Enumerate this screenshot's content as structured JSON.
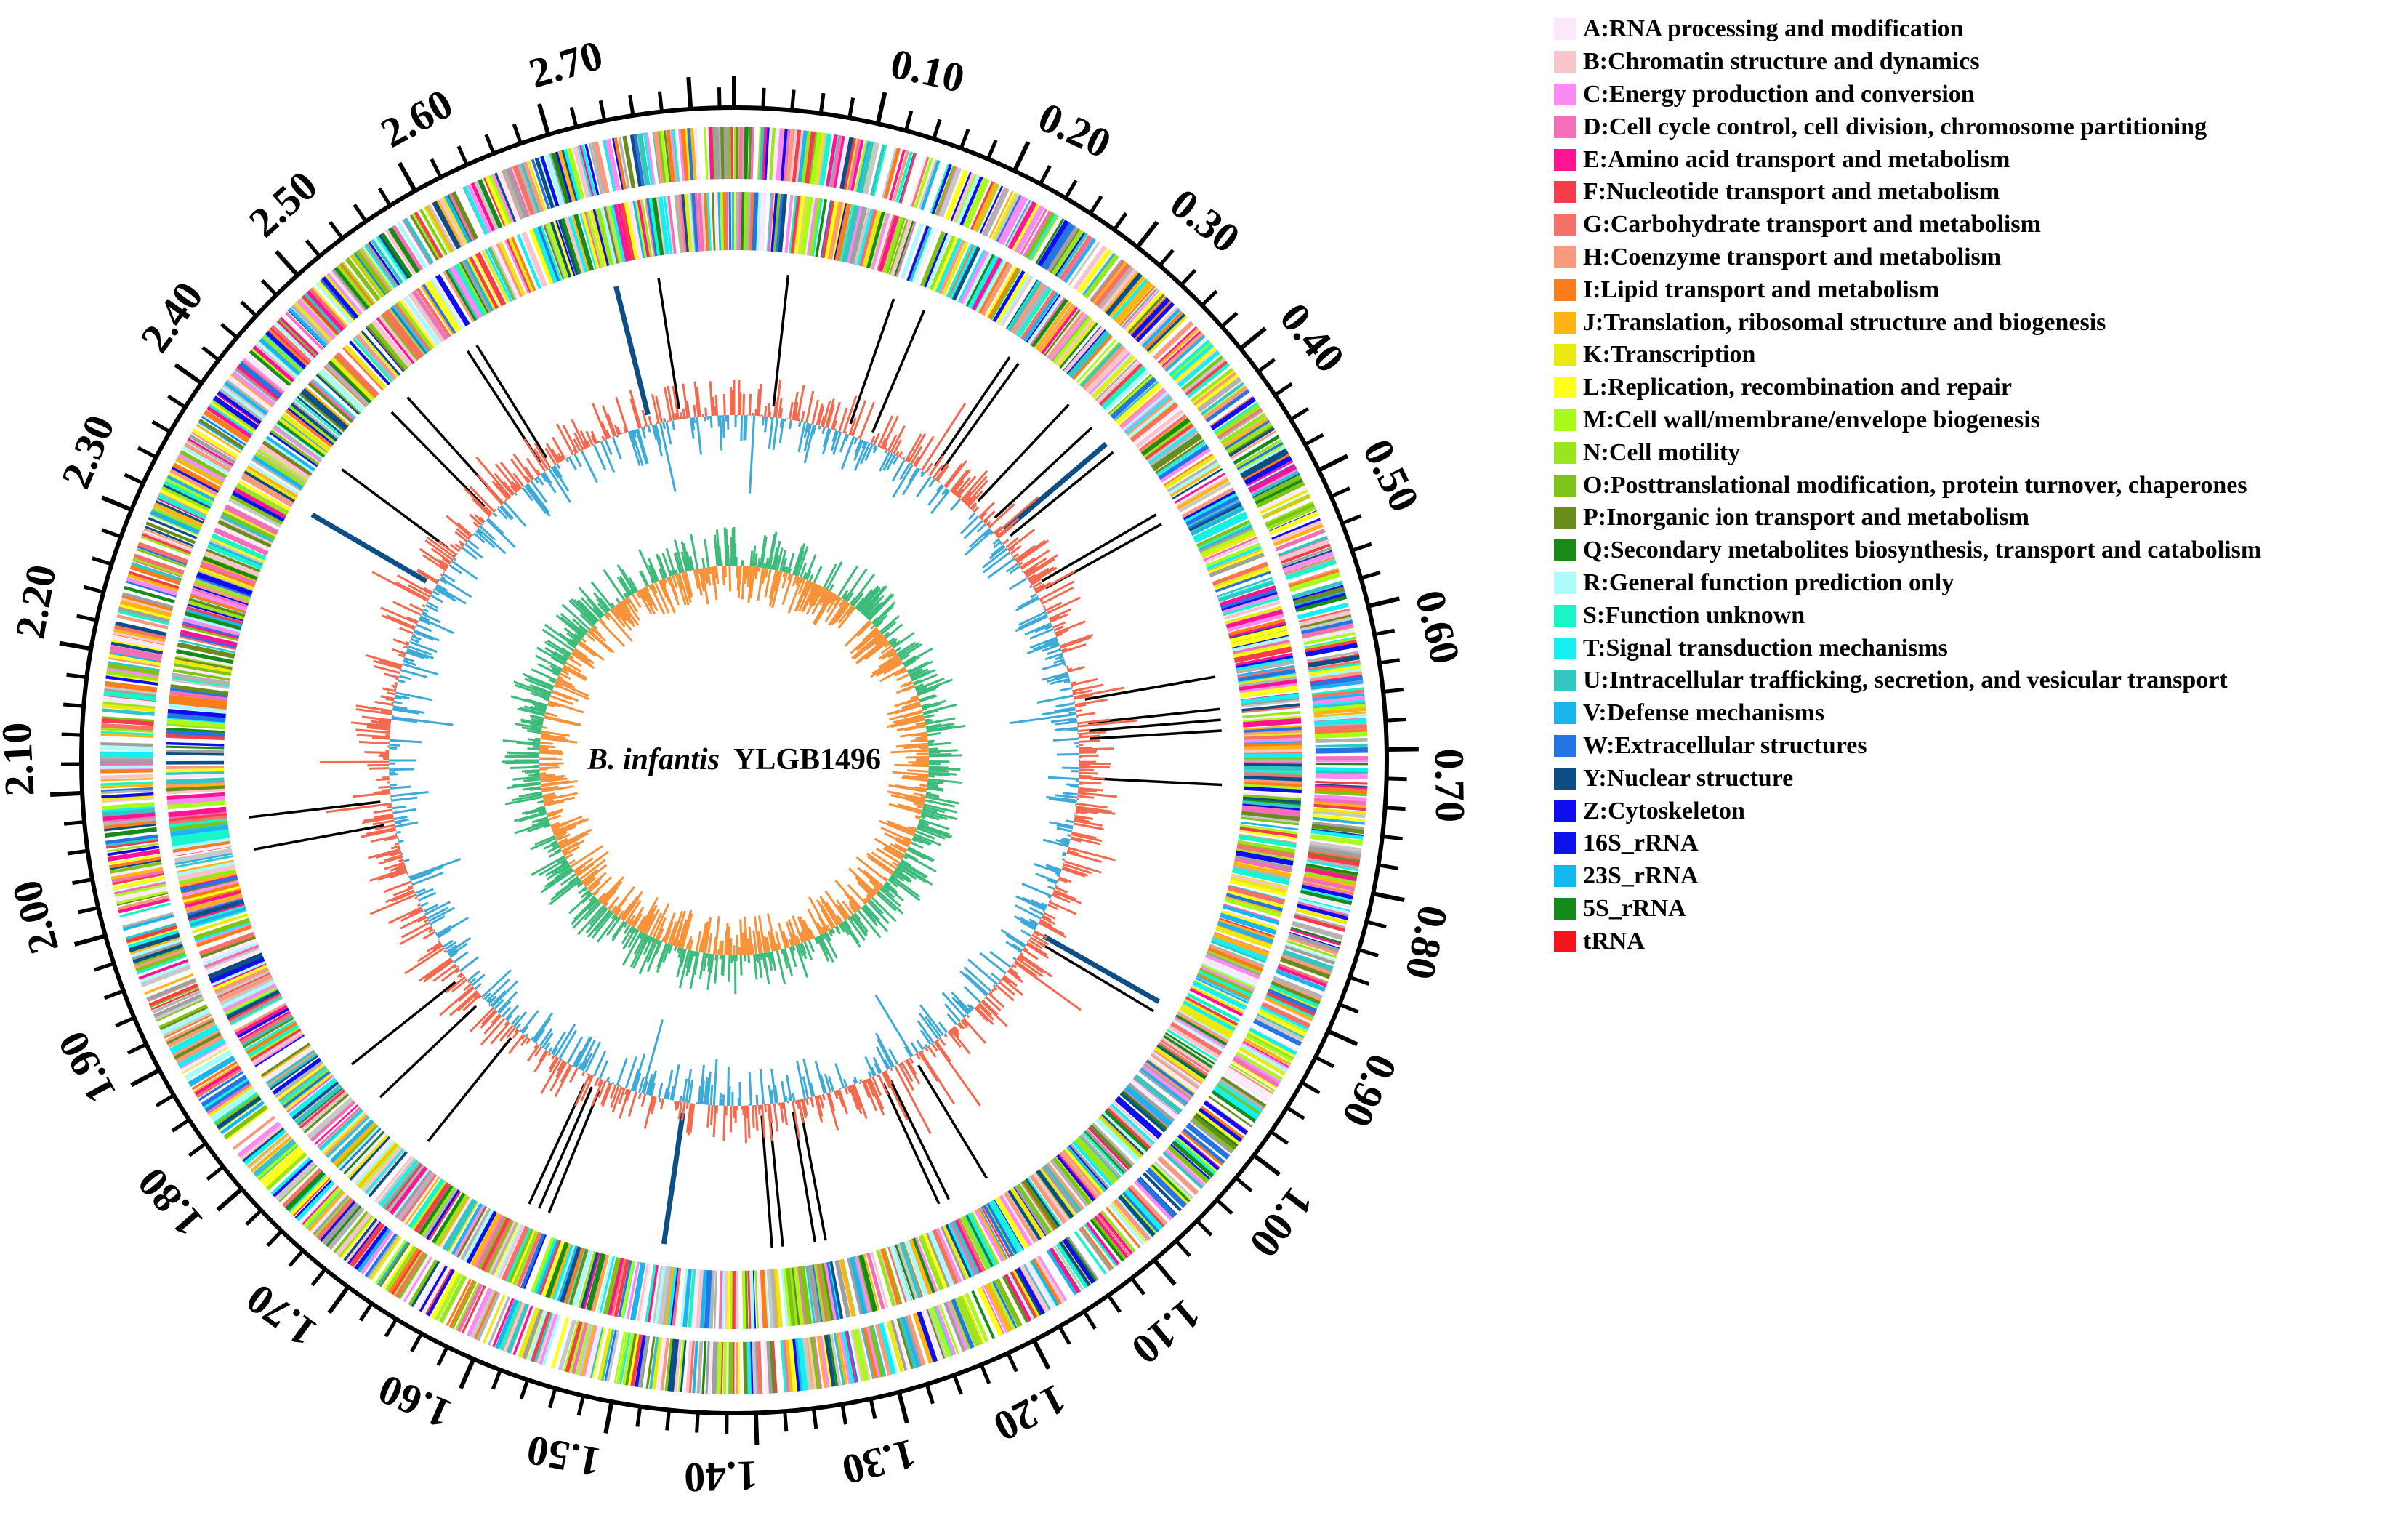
{
  "chart_data": {
    "type": "circular-genome-map",
    "title_italic": "B. infantis",
    "title_strain": "YLGB1496",
    "genome_size_mb": 2.83,
    "major_ticks": [
      "0.10",
      "0.20",
      "0.30",
      "0.40",
      "0.50",
      "0.60",
      "0.70",
      "0.80",
      "0.90",
      "1.00",
      "1.10",
      "1.20",
      "1.30",
      "1.40",
      "1.50",
      "1.60",
      "1.70",
      "1.80",
      "1.90",
      "2.00",
      "2.10",
      "2.20",
      "2.30",
      "2.40",
      "2.50",
      "2.60",
      "2.70"
    ],
    "rna_feature_positions_mb": [
      2.72,
      2.76,
      0.05,
      0.15,
      0.18,
      0.27,
      0.28,
      0.34,
      0.37,
      0.39,
      0.4,
      0.47,
      0.48,
      0.63,
      0.66,
      0.67,
      0.68,
      0.73,
      0.94,
      0.95,
      1.17,
      1.21,
      1.22,
      1.33,
      1.34,
      1.37,
      1.38,
      1.48,
      1.59,
      1.6,
      1.61,
      1.72,
      1.78,
      1.82,
      2.04,
      2.07,
      2.36,
      2.41,
      2.48,
      2.5,
      2.57,
      2.58
    ],
    "tracks": [
      "CDS forward strand (COG colored)",
      "CDS reverse strand (COG colored)",
      "rRNA / tRNA",
      "GC content",
      "GC skew"
    ]
  },
  "colors": {
    "gc_positive": "#f26a4f",
    "gc_negative": "#3eaad8",
    "skew_positive": "#3cbb7a",
    "skew_negative": "#f7923a",
    "axis": "#000000"
  },
  "legend": [
    {
      "label": "A:RNA processing and modification",
      "color": "#fbe8fb"
    },
    {
      "label": "B:Chromatin structure and dynamics",
      "color": "#f9c5cd"
    },
    {
      "label": "C:Energy production and conversion",
      "color": "#f98cf3"
    },
    {
      "label": "D:Cell cycle control, cell division, chromosome partitioning",
      "color": "#f36fb7"
    },
    {
      "label": "E:Amino acid transport and metabolism",
      "color": "#ff1493"
    },
    {
      "label": "F:Nucleotide transport and metabolism",
      "color": "#f63d4b"
    },
    {
      "label": "G:Carbohydrate transport and metabolism",
      "color": "#f7716b"
    },
    {
      "label": "H:Coenzyme transport and metabolism",
      "color": "#f79a7e"
    },
    {
      "label": "I:Lipid transport and metabolism",
      "color": "#fa7d1c"
    },
    {
      "label": "J:Translation, ribosomal structure and biogenesis",
      "color": "#fdb414"
    },
    {
      "label": "K:Transcription",
      "color": "#eaea12"
    },
    {
      "label": "L:Replication, recombination and repair",
      "color": "#ffff1a"
    },
    {
      "label": "M:Cell wall/membrane/envelope biogenesis",
      "color": "#a8fb1c"
    },
    {
      "label": "N:Cell motility",
      "color": "#9ae51f"
    },
    {
      "label": "O:Posttranslational modification, protein turnover, chaperones",
      "color": "#7ec416"
    },
    {
      "label": "P:Inorganic ion transport and metabolism",
      "color": "#6a8c1d"
    },
    {
      "label": "Q:Secondary metabolites biosynthesis, transport and catabolism",
      "color": "#178a17"
    },
    {
      "label": "R:General function prediction only",
      "color": "#adfafa"
    },
    {
      "label": "S:Function unknown",
      "color": "#1af5c8"
    },
    {
      "label": "T:Signal transduction mechanisms",
      "color": "#14f0f0"
    },
    {
      "label": "U:Intracellular trafficking, secretion, and vesicular transport",
      "color": "#36c6c2"
    },
    {
      "label": "V:Defense mechanisms",
      "color": "#1cb4ec"
    },
    {
      "label": "W:Extracellular structures",
      "color": "#2674e4"
    },
    {
      "label": "Y:Nuclear structure",
      "color": "#0d4e86"
    },
    {
      "label": "Z:Cytoskeleton",
      "color": "#0d0ded"
    },
    {
      "label": "16S_rRNA",
      "color": "#0c12ea"
    },
    {
      "label": "23S_rRNA",
      "color": "#12b9f0"
    },
    {
      "label": "5S_rRNA",
      "color": "#138a1a"
    },
    {
      "label": "tRNA",
      "color": "#f5141b"
    }
  ]
}
